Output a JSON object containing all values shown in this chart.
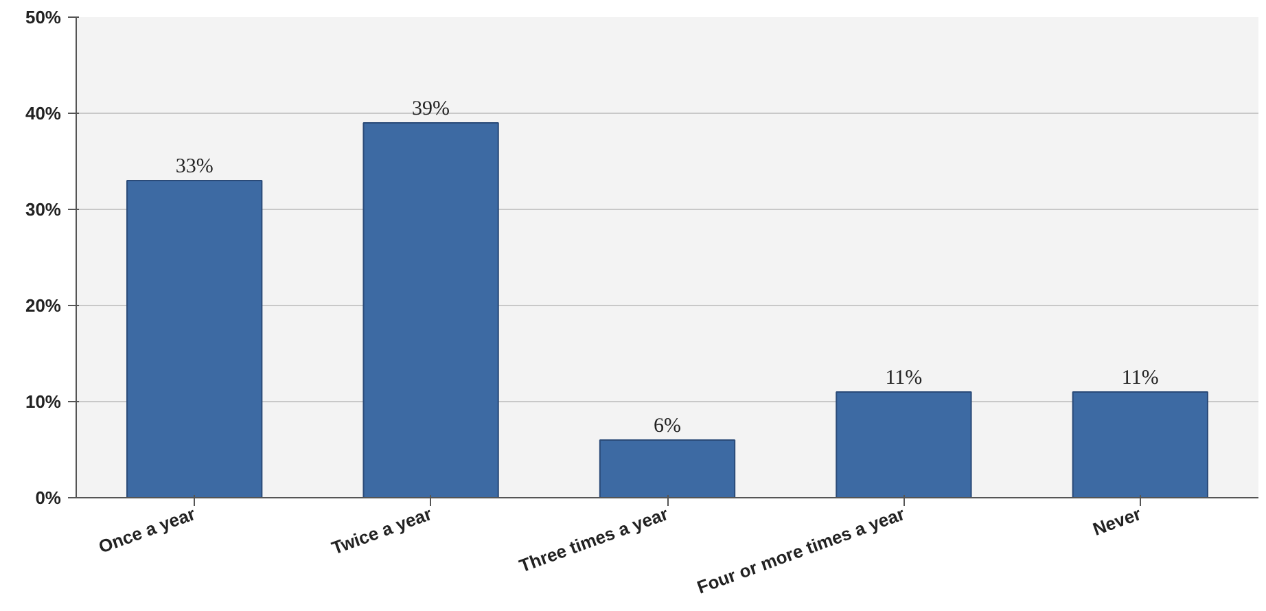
{
  "chart_data": {
    "type": "bar",
    "categories": [
      "Once a year",
      "Twice a year",
      "Three times a year",
      "Four or more times a year",
      "Never"
    ],
    "values": [
      33,
      39,
      6,
      11,
      11
    ],
    "value_labels": [
      "33%",
      "39%",
      "6%",
      "11%",
      "11%"
    ],
    "color": "#3d6aa3",
    "ylim": [
      0,
      50
    ],
    "yticks": [
      {
        "value": 0,
        "label": "0%"
      },
      {
        "value": 10,
        "label": "10%"
      },
      {
        "value": 20,
        "label": "20%"
      },
      {
        "value": 30,
        "label": "30%"
      },
      {
        "value": 40,
        "label": "40%"
      },
      {
        "value": 50,
        "label": "50%"
      }
    ],
    "grid": "y"
  }
}
